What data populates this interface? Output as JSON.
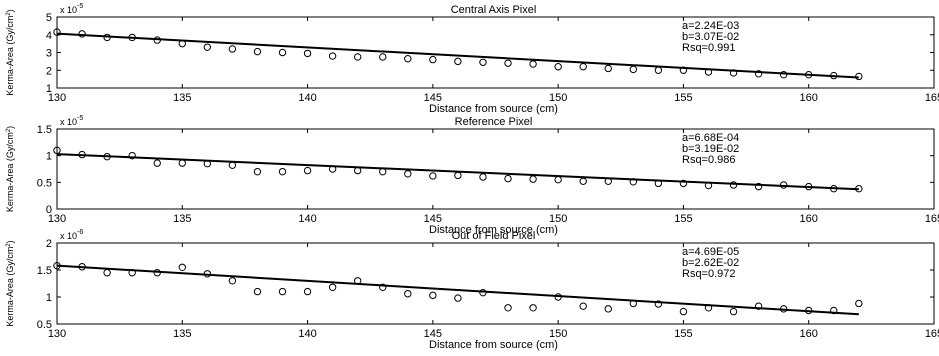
{
  "chart_data": [
    {
      "type": "scatter",
      "title": "Central Axis Pixel",
      "xlabel": "Distance from source (cm)",
      "ylabel": "Kerma-Area (Gy/cm",
      "ylabel_sup": "2",
      "ylabel_close": ")",
      "y_multiplier_base": "x 10",
      "y_multiplier_exp": "-5",
      "xlim": [
        130,
        165
      ],
      "ylim": [
        1,
        5
      ],
      "xticks": [
        130,
        135,
        140,
        145,
        150,
        155,
        160,
        165
      ],
      "yticks": [
        1,
        2,
        3,
        4,
        5
      ],
      "grid": false,
      "annotations": [
        "a=2.24E-03",
        "b=3.07E-02",
        "Rsq=0.991"
      ],
      "points": {
        "x": [
          130,
          131,
          132,
          133,
          134,
          135,
          136,
          137,
          138,
          139,
          140,
          141,
          142,
          143,
          144,
          145,
          146,
          147,
          148,
          149,
          150,
          151,
          152,
          153,
          154,
          155,
          156,
          157,
          158,
          159,
          160,
          161,
          162
        ],
        "y": [
          4.15,
          4.05,
          3.85,
          3.85,
          3.7,
          3.5,
          3.3,
          3.2,
          3.05,
          3.0,
          2.95,
          2.8,
          2.75,
          2.75,
          2.65,
          2.6,
          2.5,
          2.45,
          2.4,
          2.35,
          2.2,
          2.2,
          2.1,
          2.05,
          2.0,
          2.0,
          1.9,
          1.85,
          1.8,
          1.75,
          1.75,
          1.7,
          1.65
        ]
      },
      "fit_line": {
        "x": [
          130,
          162
        ],
        "y": [
          4.06,
          1.59
        ]
      }
    },
    {
      "type": "scatter",
      "title": "Reference Pixel",
      "xlabel": "Distance from source (cm)",
      "ylabel": "Kerma-Area (Gy/cm",
      "ylabel_sup": "2",
      "ylabel_close": ")",
      "y_multiplier_base": "x 10",
      "y_multiplier_exp": "-5",
      "xlim": [
        130,
        165
      ],
      "ylim": [
        0,
        1.5
      ],
      "xticks": [
        130,
        135,
        140,
        145,
        150,
        155,
        160,
        165
      ],
      "yticks": [
        0,
        0.5,
        1,
        1.5
      ],
      "grid": false,
      "annotations": [
        "a=6.68E-04",
        "b=3.19E-02",
        "Rsq=0.986"
      ],
      "points": {
        "x": [
          130,
          131,
          132,
          133,
          134,
          135,
          136,
          137,
          138,
          139,
          140,
          141,
          142,
          143,
          144,
          145,
          146,
          147,
          148,
          149,
          150,
          151,
          152,
          153,
          154,
          155,
          156,
          157,
          158,
          159,
          160,
          161,
          162
        ],
        "y": [
          1.1,
          1.02,
          0.98,
          1.0,
          0.86,
          0.86,
          0.85,
          0.82,
          0.7,
          0.7,
          0.72,
          0.75,
          0.72,
          0.7,
          0.66,
          0.62,
          0.63,
          0.6,
          0.57,
          0.56,
          0.55,
          0.52,
          0.52,
          0.51,
          0.48,
          0.48,
          0.44,
          0.45,
          0.42,
          0.45,
          0.42,
          0.38,
          0.38
        ]
      },
      "fit_line": {
        "x": [
          130,
          162
        ],
        "y": [
          1.03,
          0.37
        ]
      }
    },
    {
      "type": "scatter",
      "title": "Out of Field Pixel",
      "xlabel": "Distance from source (cm)",
      "ylabel": "Kerma-Area (Gy/cm",
      "ylabel_sup": "2",
      "ylabel_close": ")",
      "y_multiplier_base": "x 10",
      "y_multiplier_exp": "-6",
      "xlim": [
        130,
        165
      ],
      "ylim": [
        0.5,
        2
      ],
      "xticks": [
        130,
        135,
        140,
        145,
        150,
        155,
        160,
        165
      ],
      "yticks": [
        0.5,
        1,
        1.5,
        2
      ],
      "grid": false,
      "annotations": [
        "a=4.69E-05",
        "b=2.62E-02",
        "Rsq=0.972"
      ],
      "points": {
        "x": [
          130,
          131,
          132,
          133,
          134,
          135,
          136,
          137,
          138,
          139,
          140,
          141,
          142,
          143,
          144,
          145,
          146,
          147,
          148,
          149,
          150,
          151,
          152,
          153,
          154,
          155,
          156,
          157,
          158,
          159,
          160,
          161,
          162
        ],
        "y": [
          1.58,
          1.56,
          1.45,
          1.45,
          1.45,
          1.55,
          1.43,
          1.3,
          1.1,
          1.1,
          1.1,
          1.18,
          1.3,
          1.18,
          1.06,
          1.03,
          0.98,
          1.08,
          0.8,
          0.8,
          1.0,
          0.83,
          0.78,
          0.88,
          0.87,
          0.73,
          0.8,
          0.73,
          0.83,
          0.78,
          0.75,
          0.75,
          0.88
        ]
      },
      "fit_line": {
        "x": [
          130,
          162
        ],
        "y": [
          1.58,
          0.68
        ]
      }
    }
  ]
}
